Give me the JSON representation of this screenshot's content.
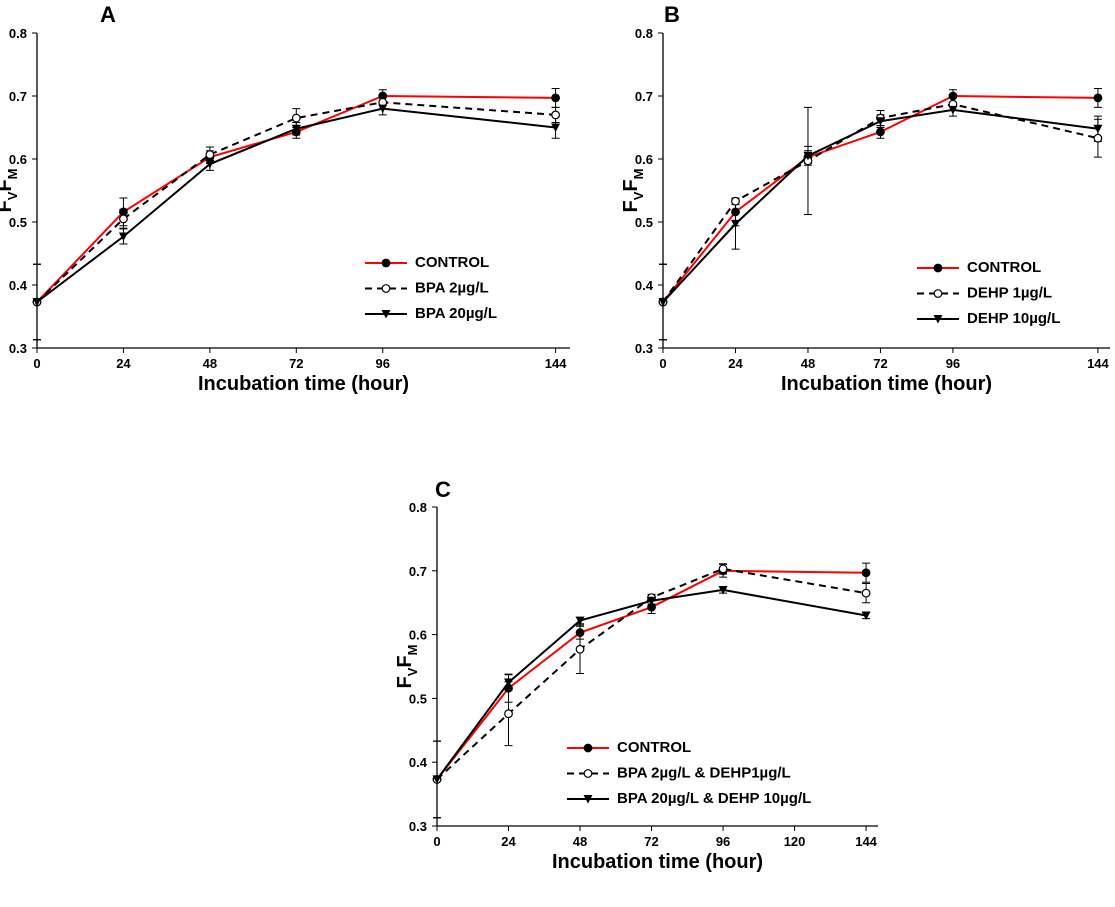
{
  "chart_data": [
    {
      "type": "line",
      "panel": "A",
      "xlabel": "Incubation time (hour)",
      "ylabel": [
        "F",
        "V",
        "F",
        "M"
      ],
      "x": [
        0,
        24,
        48,
        72,
        96,
        144
      ],
      "xlim": [
        0,
        148
      ],
      "xticks": [
        0,
        24,
        48,
        72,
        96,
        144
      ],
      "ylim": [
        0.3,
        0.8
      ],
      "yticks": [
        0.3,
        0.4,
        0.5,
        0.6,
        0.7,
        0.8
      ],
      "legend": "lower right",
      "series": [
        {
          "name": "CONTROL",
          "color": "#ff0000",
          "dash": false,
          "marker": "circle-filled",
          "values": [
            0.373,
            0.516,
            0.603,
            0.643,
            0.7,
            0.697
          ],
          "errors": [
            0.06,
            0.022,
            0.01,
            0.01,
            0.01,
            0.015
          ]
        },
        {
          "name": "BPA 2µg/L",
          "color": "#000000",
          "dash": true,
          "marker": "circle-open",
          "values": [
            0.373,
            0.505,
            0.607,
            0.665,
            0.69,
            0.67
          ],
          "errors": [
            0.06,
            0.015,
            0.012,
            0.015,
            0.01,
            0.012
          ]
        },
        {
          "name": "BPA 20µg/L",
          "color": "#000000",
          "dash": false,
          "marker": "triangle-down",
          "values": [
            0.373,
            0.477,
            0.592,
            0.648,
            0.68,
            0.65
          ],
          "errors": [
            0.06,
            0.012,
            0.01,
            0.01,
            0.01,
            0.017
          ]
        }
      ]
    },
    {
      "type": "line",
      "panel": "B",
      "xlabel": "Incubation time (hour)",
      "ylabel": [
        "F",
        "V",
        "F",
        "M"
      ],
      "x": [
        0,
        24,
        48,
        72,
        96,
        144
      ],
      "xlim": [
        0,
        148
      ],
      "xticks": [
        0,
        24,
        48,
        72,
        96,
        144
      ],
      "ylim": [
        0.3,
        0.8
      ],
      "yticks": [
        0.3,
        0.4,
        0.5,
        0.6,
        0.7,
        0.8
      ],
      "legend": "lower right",
      "series": [
        {
          "name": "CONTROL",
          "color": "#ff0000",
          "dash": false,
          "marker": "circle-filled",
          "values": [
            0.373,
            0.516,
            0.603,
            0.643,
            0.7,
            0.697
          ],
          "errors": [
            0.06,
            0.022,
            0.01,
            0.01,
            0.01,
            0.015
          ]
        },
        {
          "name": "DEHP 1µg/L",
          "color": "#000000",
          "dash": true,
          "marker": "circle-open",
          "values": [
            0.373,
            0.533,
            0.597,
            0.665,
            0.687,
            0.633
          ],
          "errors": [
            0.06,
            0.005,
            0.085,
            0.012,
            0.01,
            0.03
          ]
        },
        {
          "name": "DEHP 10µg/L",
          "color": "#000000",
          "dash": false,
          "marker": "triangle-down",
          "values": [
            0.373,
            0.497,
            0.605,
            0.66,
            0.678,
            0.648
          ],
          "errors": [
            0.06,
            0.04,
            0.015,
            0.01,
            0.01,
            0.02
          ]
        }
      ]
    },
    {
      "type": "line",
      "panel": "C",
      "xlabel": "Incubation time (hour)",
      "ylabel": [
        "F",
        "V",
        "F",
        "M"
      ],
      "x": [
        0,
        24,
        48,
        72,
        96,
        144
      ],
      "xlim": [
        0,
        148
      ],
      "xticks": [
        0,
        24,
        48,
        72,
        96,
        120,
        144
      ],
      "ylim": [
        0.3,
        0.8
      ],
      "yticks": [
        0.3,
        0.4,
        0.5,
        0.6,
        0.7,
        0.8
      ],
      "legend": "lower right",
      "series": [
        {
          "name": "CONTROL",
          "color": "#ff0000",
          "dash": false,
          "marker": "circle-filled",
          "values": [
            0.373,
            0.516,
            0.603,
            0.643,
            0.7,
            0.697
          ],
          "errors": [
            0.06,
            0.022,
            0.01,
            0.01,
            0.01,
            0.015
          ]
        },
        {
          "name": "BPA 2µg/L & DEHP1µg/L",
          "color": "#000000",
          "dash": true,
          "marker": "circle-open",
          "values": [
            0.373,
            0.476,
            0.577,
            0.658,
            0.703,
            0.665
          ],
          "errors": [
            0.06,
            0.05,
            0.038,
            0.005,
            0.008,
            0.015
          ]
        },
        {
          "name": "BPA 20µg/L & DEHP 10µg/L",
          "color": "#000000",
          "dash": false,
          "marker": "triangle-down",
          "values": [
            0.373,
            0.525,
            0.622,
            0.653,
            0.67,
            0.63
          ],
          "errors": [
            0.06,
            0.012,
            0.005,
            0.005,
            0.005,
            0.005
          ]
        }
      ]
    }
  ]
}
